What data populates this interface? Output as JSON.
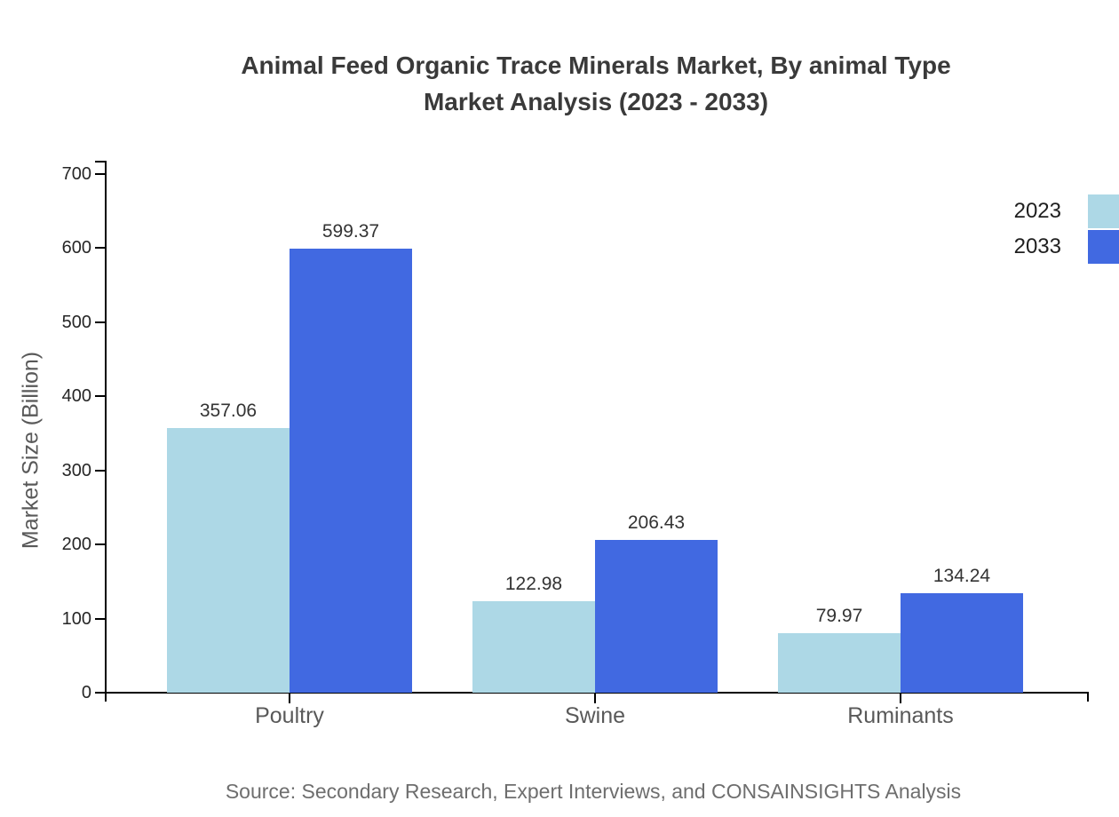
{
  "title": {
    "line1": "Animal Feed Organic Trace Minerals Market, By animal Type",
    "line2": "Market Analysis (2023 - 2033)"
  },
  "chart_data": {
    "type": "bar",
    "categories": [
      "Poultry",
      "Swine",
      "Ruminants"
    ],
    "series": [
      {
        "name": "2023",
        "color": "#ADD8E6",
        "values": [
          357.06,
          122.98,
          79.97
        ]
      },
      {
        "name": "2033",
        "color": "#4169E1",
        "values": [
          599.37,
          206.43,
          134.24
        ]
      }
    ],
    "ylabel": "Market Size (Billion)",
    "yticks": [
      0,
      100,
      200,
      300,
      400,
      500,
      600,
      700
    ],
    "ylim": [
      0,
      700
    ],
    "grid": false,
    "legend_position": "upper-right",
    "value_labels": true
  },
  "source": {
    "text": "Source: Secondary Research, Expert Interviews, and CONSAINSIGHTS Analysis"
  },
  "colors": {
    "axis": "#000000",
    "title_text": "#3a3a3a",
    "tick_text": "#262626",
    "category_text": "#595959",
    "source_text": "#6e6e6e"
  }
}
